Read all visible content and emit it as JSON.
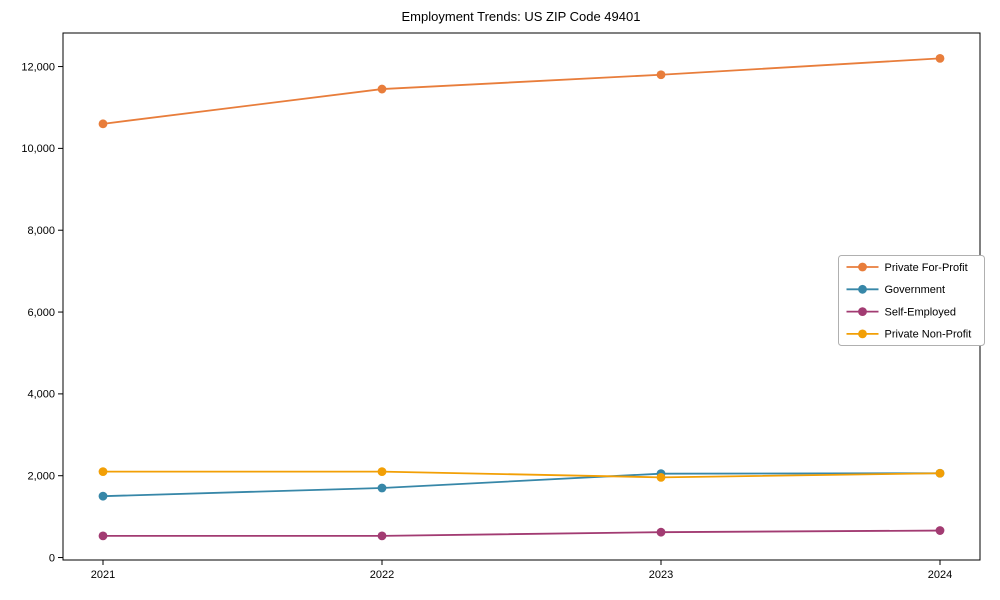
{
  "title": "Employment Trends: US ZIP Code 49401",
  "colors": {
    "axis": "#000000",
    "background": "#ffffff",
    "legend_border": "#b0b0b0",
    "private_for_profit": "#E87D3B",
    "government": "#3787A8",
    "self_employed": "#A23B72",
    "private_non_profit": "#F29F05"
  },
  "chart_data": {
    "type": "line",
    "title": "Employment Trends: US ZIP Code 49401",
    "xlabel": "",
    "ylabel": "",
    "categories": [
      "2021",
      "2022",
      "2023",
      "2024"
    ],
    "series": [
      {
        "name": "Private For-Profit",
        "color": "#E87D3B",
        "values": [
          10600,
          11450,
          11800,
          12200
        ]
      },
      {
        "name": "Government",
        "color": "#3787A8",
        "values": [
          1500,
          1700,
          2050,
          2060
        ]
      },
      {
        "name": "Self-Employed",
        "color": "#A23B72",
        "values": [
          530,
          530,
          620,
          660
        ]
      },
      {
        "name": "Private Non-Profit",
        "color": "#F29F05",
        "values": [
          2100,
          2100,
          1960,
          2060
        ]
      }
    ],
    "ylim": [
      0,
      12700
    ],
    "yticks": [
      0,
      2000,
      4000,
      6000,
      8000,
      10000,
      12000
    ],
    "ytick_labels": [
      "0",
      "2,000",
      "4,000",
      "6,000",
      "8,000",
      "10,000",
      "12,000"
    ],
    "grid": false,
    "marker": "circle",
    "legend_position": "center-right"
  }
}
